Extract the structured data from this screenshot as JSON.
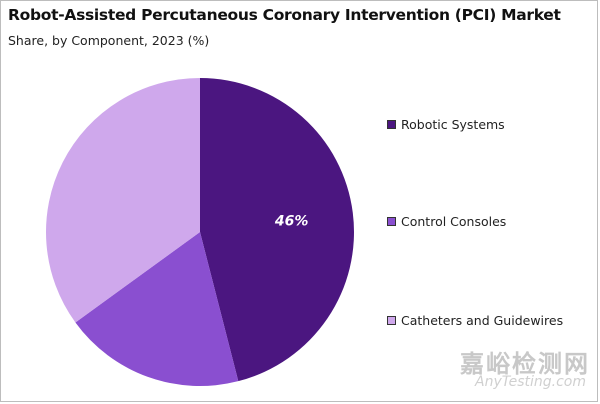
{
  "chart_data": {
    "type": "pie",
    "title": "Robot-Assisted Percutaneous Coronary Intervention (PCI) Market",
    "subtitle": "Share, by Component, 2023 (%)",
    "slices": [
      {
        "name": "Robotic Systems",
        "value": 46,
        "label": "46%",
        "color": "#4b1680"
      },
      {
        "name": "Control Consoles",
        "value": 19,
        "label": "",
        "color": "#8a4fd0"
      },
      {
        "name": "Catheters and Guidewires",
        "value": 35,
        "label": "",
        "color": "#cfa8ec"
      }
    ],
    "start_angle_deg": 0,
    "direction": "clockwise",
    "legend_position": "right"
  },
  "watermark": {
    "cn": "嘉峪检测网",
    "en": "AnyTesting.com"
  }
}
